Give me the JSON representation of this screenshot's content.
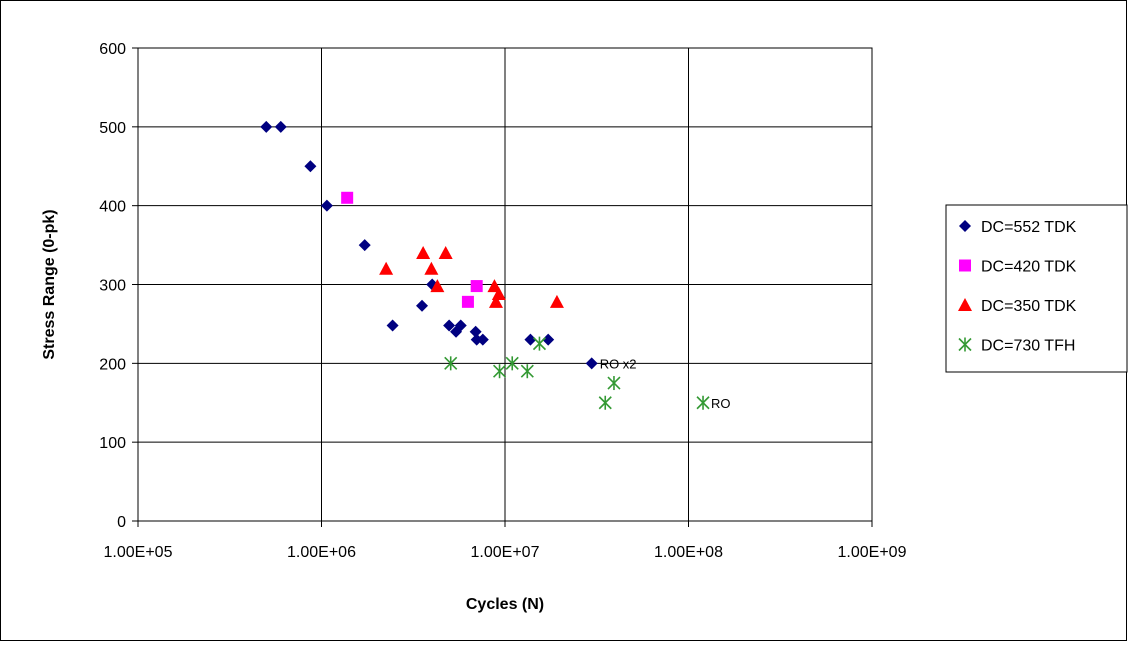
{
  "chart_data": {
    "type": "scatter",
    "title": "",
    "xlabel": "Cycles (N)",
    "ylabel": "Stress Range (0-pk)",
    "xscale": "log",
    "xlim": [
      100000,
      1000000000
    ],
    "ylim": [
      0,
      600
    ],
    "grid": true,
    "legend_position": "right",
    "xticks": [
      {
        "value": 100000,
        "label": "1.00E+05"
      },
      {
        "value": 1000000,
        "label": "1.00E+06"
      },
      {
        "value": 10000000,
        "label": "1.00E+07"
      },
      {
        "value": 100000000,
        "label": "1.00E+08"
      },
      {
        "value": 1000000000,
        "label": "1.00E+09"
      }
    ],
    "yticks": [
      {
        "value": 0,
        "label": "0"
      },
      {
        "value": 100,
        "label": "100"
      },
      {
        "value": 200,
        "label": "200"
      },
      {
        "value": 300,
        "label": "300"
      },
      {
        "value": 400,
        "label": "400"
      },
      {
        "value": 500,
        "label": "500"
      },
      {
        "value": 600,
        "label": "600"
      }
    ],
    "series": [
      {
        "name": "DC=552 TDK",
        "marker": "diamond",
        "color": "#000080",
        "points": [
          {
            "x": 500000,
            "y": 500
          },
          {
            "x": 600000,
            "y": 500
          },
          {
            "x": 870000,
            "y": 450
          },
          {
            "x": 1070000,
            "y": 400
          },
          {
            "x": 1720000,
            "y": 350
          },
          {
            "x": 2440000,
            "y": 248
          },
          {
            "x": 3530000,
            "y": 273
          },
          {
            "x": 4010000,
            "y": 300
          },
          {
            "x": 4960000,
            "y": 248
          },
          {
            "x": 5410000,
            "y": 240
          },
          {
            "x": 5740000,
            "y": 248
          },
          {
            "x": 6920000,
            "y": 240
          },
          {
            "x": 7010000,
            "y": 230
          },
          {
            "x": 7570000,
            "y": 230
          },
          {
            "x": 13760000,
            "y": 230
          },
          {
            "x": 17190000,
            "y": 230
          },
          {
            "x": 29680000,
            "y": 200
          }
        ]
      },
      {
        "name": "DC=420 TDK",
        "marker": "square",
        "color": "#FF00FF",
        "points": [
          {
            "x": 1380000,
            "y": 410
          },
          {
            "x": 6280000,
            "y": 278
          },
          {
            "x": 7010000,
            "y": 298
          }
        ]
      },
      {
        "name": "DC=350 TDK",
        "marker": "triangle",
        "color": "#FF0000",
        "points": [
          {
            "x": 2250000,
            "y": 320
          },
          {
            "x": 3580000,
            "y": 340
          },
          {
            "x": 3970000,
            "y": 320
          },
          {
            "x": 4280000,
            "y": 298
          },
          {
            "x": 4750000,
            "y": 340
          },
          {
            "x": 8760000,
            "y": 298
          },
          {
            "x": 9260000,
            "y": 288
          },
          {
            "x": 8930000,
            "y": 278
          },
          {
            "x": 19190000,
            "y": 278
          }
        ]
      },
      {
        "name": "DC=730 TFH",
        "marker": "star",
        "color": "#339933",
        "points": [
          {
            "x": 5060000,
            "y": 200
          },
          {
            "x": 9340000,
            "y": 190
          },
          {
            "x": 10950000,
            "y": 200
          },
          {
            "x": 13230000,
            "y": 190
          },
          {
            "x": 15410000,
            "y": 225
          },
          {
            "x": 35180000,
            "y": 150
          },
          {
            "x": 39250000,
            "y": 175
          },
          {
            "x": 120000000,
            "y": 150
          }
        ]
      }
    ],
    "annotations": [
      {
        "text": "RO x2",
        "x": 29680000,
        "y": 200
      },
      {
        "text": "RO",
        "x": 120000000,
        "y": 150
      }
    ]
  }
}
